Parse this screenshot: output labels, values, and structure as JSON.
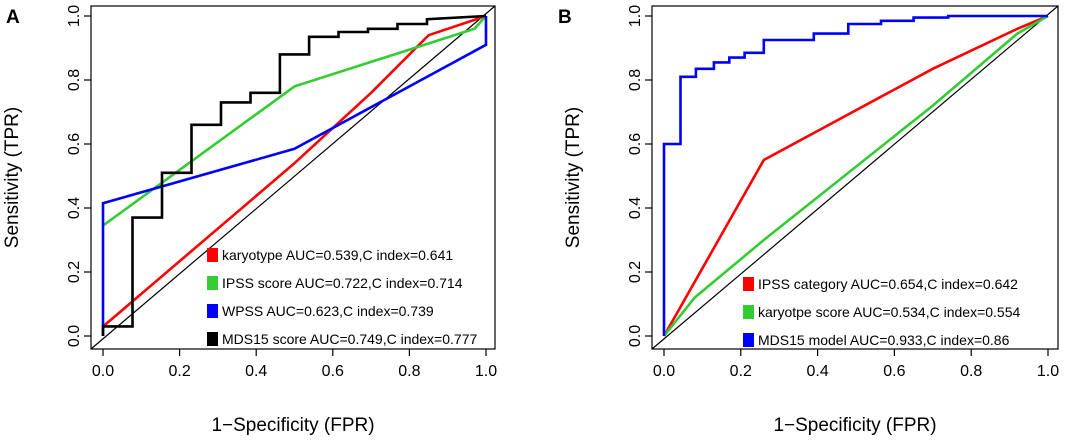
{
  "chart_data": [
    {
      "type": "line",
      "panel_label": "A",
      "xlabel": "1−Specificity (FPR)",
      "ylabel": "Sensitivity (TPR)",
      "xlim": [
        0,
        1
      ],
      "ylim": [
        0,
        1
      ],
      "ticks": [
        "0.0",
        "0.2",
        "0.4",
        "0.6",
        "0.8",
        "1.0"
      ],
      "tick_values": [
        0,
        0.2,
        0.4,
        0.6,
        0.8,
        1.0
      ],
      "legend_position": "bottom-right",
      "series": [
        {
          "name": "karyotype",
          "legend": "karyotype AUC=0.539,C index=0.641",
          "color": "#ff0000",
          "x": [
            0,
            0.02,
            0.5,
            0.7,
            0.85,
            1.0
          ],
          "y": [
            0.03,
            0.05,
            0.54,
            0.76,
            0.94,
            1.0
          ]
        },
        {
          "name": "IPSS score",
          "legend": "IPSS score AUC=0.722,C index=0.714",
          "color": "#33cc33",
          "x": [
            0,
            0.5,
            0.97,
            1.0
          ],
          "y": [
            0.345,
            0.78,
            0.96,
            1.0
          ]
        },
        {
          "name": "WPSS",
          "legend": "WPSS AUC=0.623,C index=0.739",
          "color": "#0000ff",
          "x": [
            0,
            0,
            0.5,
            1.0,
            1.0
          ],
          "y": [
            0.0,
            0.415,
            0.585,
            0.91,
            1.0
          ]
        },
        {
          "name": "MDS15 score",
          "legend": "MDS15 score AUC=0.749,C index=0.777",
          "color": "#000000",
          "x": [
            0,
            0,
            0.077,
            0.077,
            0.154,
            0.154,
            0.231,
            0.231,
            0.308,
            0.308,
            0.385,
            0.385,
            0.462,
            0.462,
            0.538,
            0.538,
            0.615,
            0.615,
            0.692,
            0.692,
            0.769,
            0.769,
            0.846,
            0.846,
            1.0
          ],
          "y": [
            0.0,
            0.03,
            0.03,
            0.37,
            0.37,
            0.51,
            0.51,
            0.66,
            0.66,
            0.73,
            0.73,
            0.76,
            0.76,
            0.88,
            0.88,
            0.935,
            0.935,
            0.95,
            0.95,
            0.96,
            0.96,
            0.975,
            0.975,
            0.99,
            1.0
          ]
        }
      ]
    },
    {
      "type": "line",
      "panel_label": "B",
      "xlabel": "1−Specificity (FPR)",
      "ylabel": "Sensitivity (TPR)",
      "xlim": [
        0,
        1
      ],
      "ylim": [
        0,
        1
      ],
      "ticks": [
        "0.0",
        "0.2",
        "0.4",
        "0.6",
        "0.8",
        "1.0"
      ],
      "tick_values": [
        0,
        0.2,
        0.4,
        0.6,
        0.8,
        1.0
      ],
      "legend_position": "bottom-right",
      "series": [
        {
          "name": "IPSS category",
          "legend": "IPSS category AUC=0.654,C index=0.642",
          "color": "#ff0000",
          "x": [
            0,
            0.26,
            0.7,
            0.92,
            1.0
          ],
          "y": [
            0,
            0.55,
            0.835,
            0.96,
            1.0
          ]
        },
        {
          "name": "karyotpe score",
          "legend": "karyotpe score AUC=0.534,C index=0.554",
          "color": "#33cc33",
          "x": [
            0,
            0.08,
            0.26,
            0.7,
            0.92,
            1.0
          ],
          "y": [
            0,
            0.12,
            0.3,
            0.72,
            0.945,
            1.0
          ]
        },
        {
          "name": "MDS15 model",
          "legend": "MDS15 model AUC=0.933,C index=0.86",
          "color": "#0000ff",
          "x": [
            0,
            0,
            0.043,
            0.043,
            0.083,
            0.083,
            0.13,
            0.13,
            0.17,
            0.17,
            0.21,
            0.21,
            0.26,
            0.26,
            0.39,
            0.39,
            0.48,
            0.48,
            0.565,
            0.565,
            0.65,
            0.65,
            0.74,
            0.74,
            1.0
          ],
          "y": [
            0,
            0.6,
            0.6,
            0.81,
            0.81,
            0.835,
            0.835,
            0.855,
            0.855,
            0.87,
            0.87,
            0.885,
            0.885,
            0.925,
            0.925,
            0.945,
            0.945,
            0.975,
            0.975,
            0.985,
            0.985,
            0.995,
            0.995,
            1.0,
            1.0
          ]
        }
      ]
    }
  ]
}
